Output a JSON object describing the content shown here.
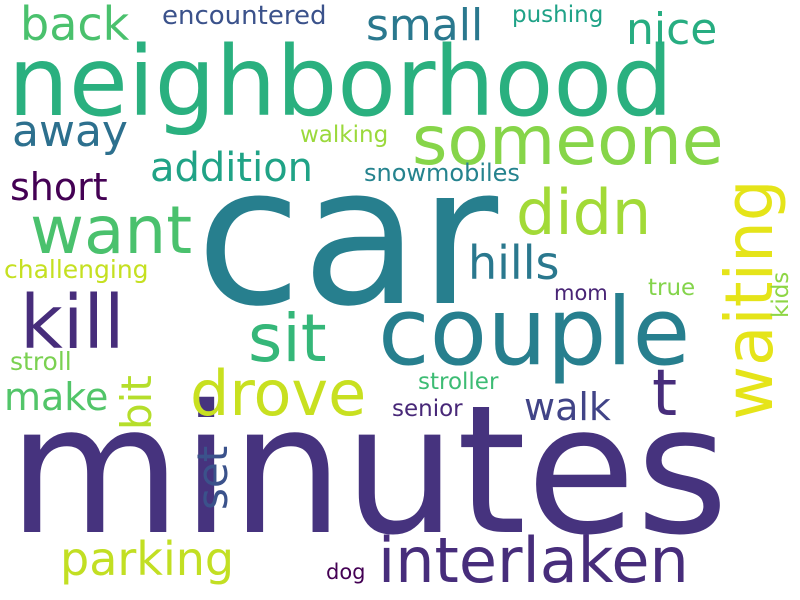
{
  "words": [
    {
      "text": "minutes",
      "color": "#46337e"
    },
    {
      "text": "car",
      "color": "#277f8e"
    },
    {
      "text": "neighborhood",
      "color": "#2ab07f"
    },
    {
      "text": "couple",
      "color": "#277f8e"
    },
    {
      "text": "someone",
      "color": "#86d549"
    },
    {
      "text": "interlaken",
      "color": "#472d7b"
    },
    {
      "text": "waiting",
      "color": "#e5e419"
    },
    {
      "text": "kill",
      "color": "#472d7b"
    },
    {
      "text": "drove",
      "color": "#c8e020"
    },
    {
      "text": "want",
      "color": "#4ac16d"
    },
    {
      "text": "sit",
      "color": "#35b779"
    },
    {
      "text": "didn",
      "color": "#a2da37"
    },
    {
      "text": "t",
      "color": "#472d7b"
    },
    {
      "text": "parking",
      "color": "#c2df23"
    },
    {
      "text": "back",
      "color": "#4ac16d"
    },
    {
      "text": "away",
      "color": "#2d708e"
    },
    {
      "text": "small",
      "color": "#2a788e"
    },
    {
      "text": "nice",
      "color": "#27ad81"
    },
    {
      "text": "hills",
      "color": "#2a788e"
    },
    {
      "text": "addition",
      "color": "#20a386"
    },
    {
      "text": "short",
      "color": "#440154"
    },
    {
      "text": "walk",
      "color": "#414487"
    },
    {
      "text": "make",
      "color": "#52c569"
    },
    {
      "text": "bit",
      "color": "#b5de2b"
    },
    {
      "text": "set",
      "color": "#3b528b"
    },
    {
      "text": "encountered",
      "color": "#3b528b"
    },
    {
      "text": "pushing",
      "color": "#1fa287"
    },
    {
      "text": "walking",
      "color": "#9bd93c"
    },
    {
      "text": "snowmobiles",
      "color": "#25838e"
    },
    {
      "text": "challenging",
      "color": "#c5e021"
    },
    {
      "text": "stroller",
      "color": "#3dbc74"
    },
    {
      "text": "senior",
      "color": "#482878"
    },
    {
      "text": "stroll",
      "color": "#7ad151"
    },
    {
      "text": "true",
      "color": "#84d44b"
    },
    {
      "text": "kids",
      "color": "#8ed645"
    },
    {
      "text": "mom",
      "color": "#482475"
    },
    {
      "text": "dog",
      "color": "#440154"
    }
  ]
}
